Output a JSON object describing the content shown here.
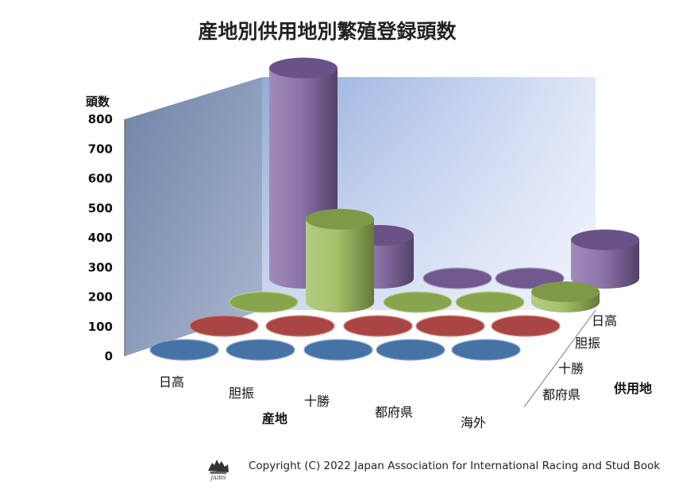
{
  "chart_data": {
    "type": "bar3d",
    "title": "産地別供用地別繁殖登録頭数",
    "zlabel": "頭数",
    "xlabel": "産地",
    "ylabel": "供用地",
    "zlim": [
      0,
      800
    ],
    "zticks": [
      "0",
      "100",
      "200",
      "300",
      "400",
      "500",
      "600",
      "700",
      "800"
    ],
    "categories": [
      "日高",
      "胆振",
      "十勝",
      "都府県",
      "海外"
    ],
    "series": [
      {
        "name": "都府県",
        "color": "#4f81bd",
        "values": [
          0,
          0,
          0,
          0,
          0
        ]
      },
      {
        "name": "十勝",
        "color": "#c0504d",
        "values": [
          0,
          0,
          0,
          0,
          0
        ]
      },
      {
        "name": "胆振",
        "color": "#9bbb59",
        "values": [
          0,
          280,
          0,
          0,
          35
        ]
      },
      {
        "name": "日高",
        "color": "#8064a2",
        "values": [
          710,
          145,
          0,
          0,
          130
        ]
      }
    ],
    "grid": false,
    "legend": "none"
  },
  "footer": {
    "copyright": "Copyright (C) 2022 Japan Association for International Racing and Stud Book",
    "logo_icon": "jairs-logo-icon"
  }
}
